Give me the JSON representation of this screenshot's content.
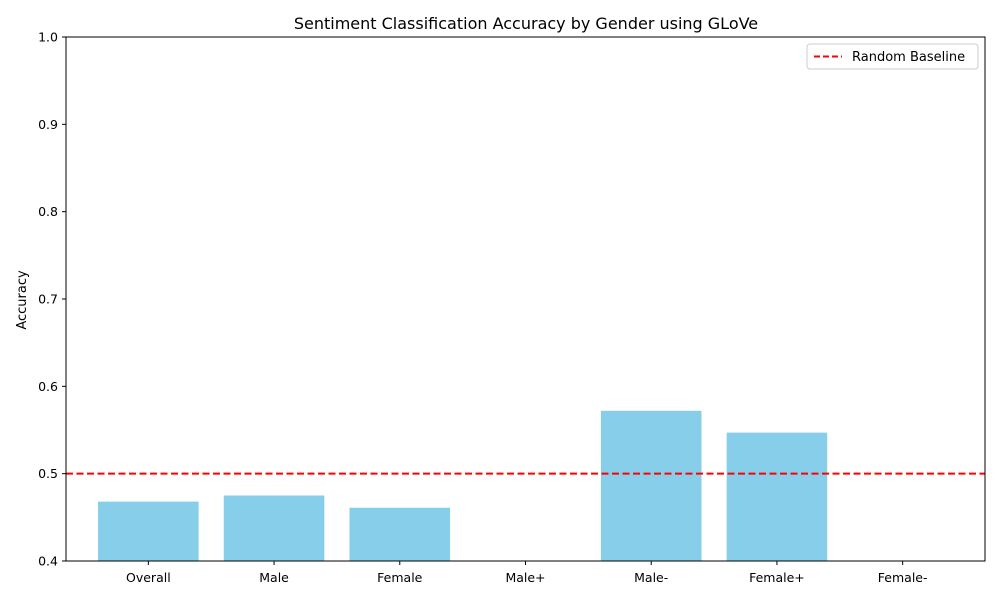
{
  "chart_data": {
    "type": "bar",
    "title": "Sentiment Classification Accuracy by Gender using GLoVe",
    "xlabel": "",
    "ylabel": "Accuracy",
    "categories": [
      "Overall",
      "Male",
      "Female",
      "Male+",
      "Male-",
      "Female+",
      "Female-"
    ],
    "values": [
      0.468,
      0.475,
      0.461,
      null,
      0.572,
      0.547,
      null
    ],
    "ylim": [
      0.4,
      1.0
    ],
    "yticks": [
      0.4,
      0.5,
      0.6,
      0.7,
      0.8,
      0.9,
      1.0
    ],
    "ytick_labels": [
      "0.4",
      "0.5",
      "0.6",
      "0.7",
      "0.8",
      "0.9",
      "1.0"
    ],
    "bar_color": "#87CEEB",
    "baseline": {
      "name": "Random Baseline",
      "value": 0.5,
      "color": "#FF0000",
      "style": "dashed"
    },
    "legend": {
      "position": "top-right",
      "entries": [
        "Random Baseline"
      ]
    },
    "grid": false
  }
}
